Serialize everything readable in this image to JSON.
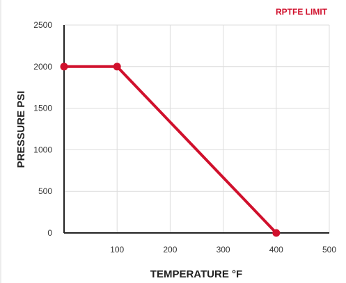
{
  "chart_data": {
    "type": "line",
    "title": "",
    "xlabel": "TEMPERATURE °F",
    "ylabel": "PRESSURE PSI",
    "xlim": [
      0,
      500
    ],
    "ylim": [
      0,
      2500
    ],
    "x_ticks": [
      "",
      "100",
      "200",
      "300",
      "400",
      "500"
    ],
    "y_ticks": [
      "0",
      "500",
      "1000",
      "1500",
      "2000",
      "2500"
    ],
    "grid": true,
    "legend": "top-right",
    "series": [
      {
        "name": "RPTFE LIMIT",
        "color": "#d0102c",
        "x": [
          0,
          100,
          400
        ],
        "y": [
          2000,
          2000,
          0
        ]
      }
    ]
  }
}
